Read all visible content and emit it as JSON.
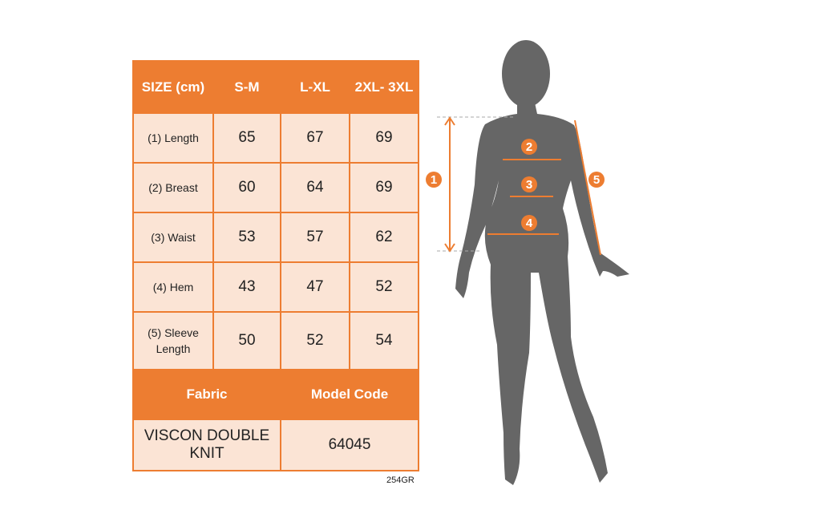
{
  "table": {
    "headers": [
      "SIZE (cm)",
      "S-M",
      "L-XL",
      "2XL- 3XL"
    ],
    "rows": [
      {
        "label": "(1) Length",
        "values": [
          "65",
          "67",
          "69"
        ]
      },
      {
        "label": "(2) Breast",
        "values": [
          "60",
          "64",
          "69"
        ]
      },
      {
        "label": "(3) Waist",
        "values": [
          "53",
          "57",
          "62"
        ]
      },
      {
        "label": "(4) Hem",
        "values": [
          "43",
          "47",
          "52"
        ]
      },
      {
        "label": "(5) Sleeve Length",
        "values": [
          "50",
          "52",
          "54"
        ]
      }
    ],
    "fabric_header": "Fabric",
    "model_code_header": "Model Code",
    "fabric_value": "VISCON DOUBLE KNIT",
    "model_code_value": "64045"
  },
  "footer_code": "254GR",
  "diagram": {
    "markers": [
      "1",
      "2",
      "3",
      "4",
      "5"
    ]
  },
  "colors": {
    "accent": "#ed7d31",
    "cell": "#fbe4d5",
    "silhouette": "#666666"
  }
}
